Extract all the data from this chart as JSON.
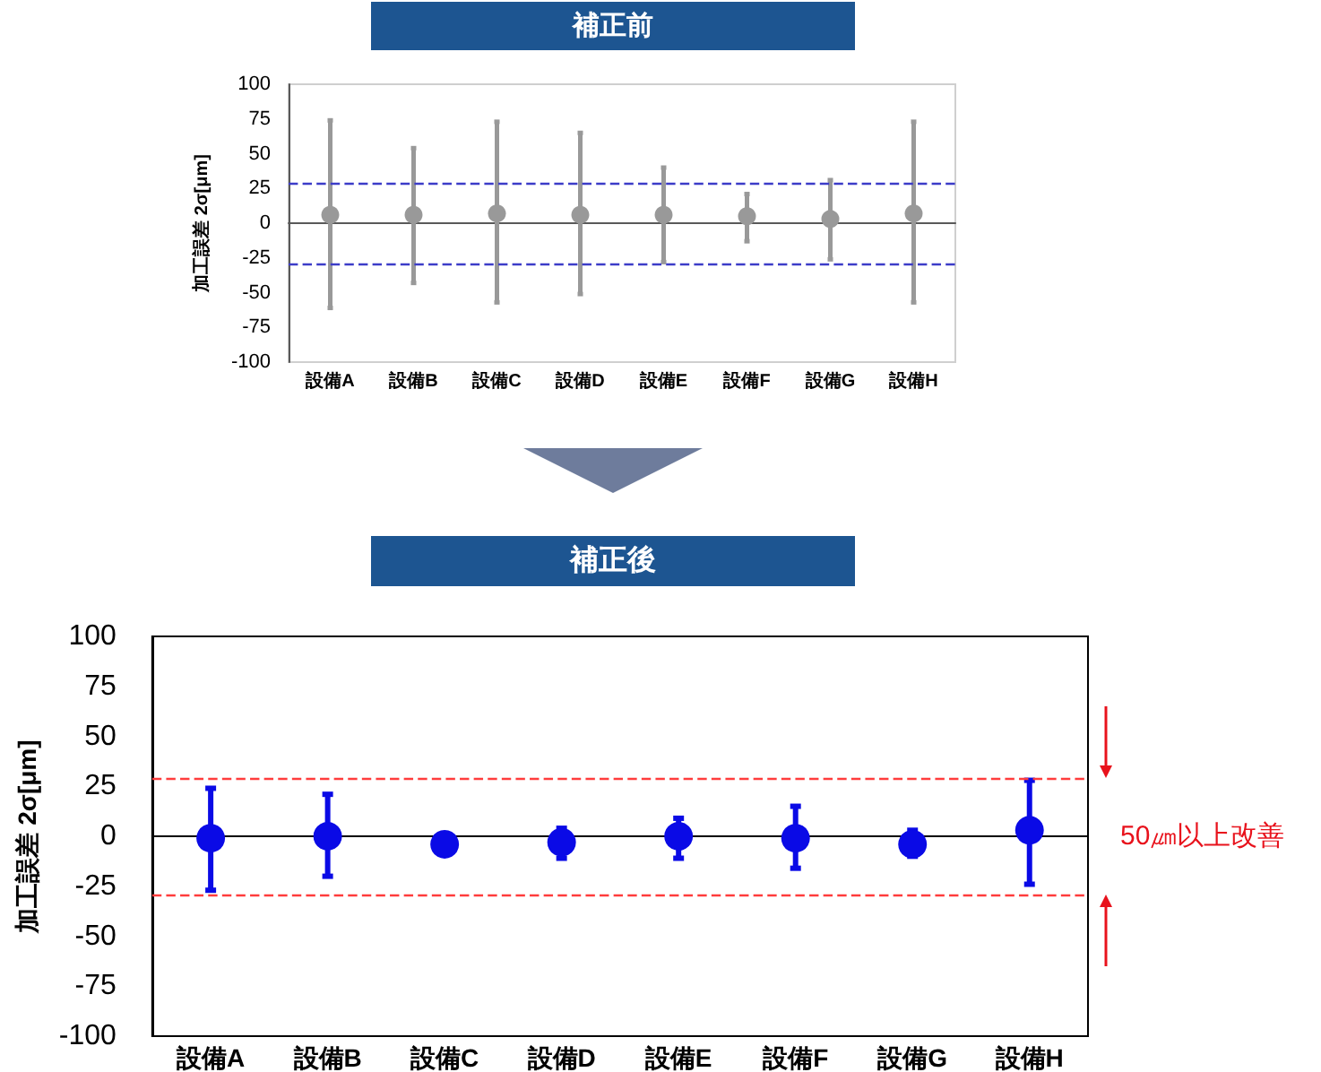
{
  "chart_data": [
    {
      "type": "scatter",
      "title": "補正前",
      "ylabel": "加工誤差 2σ[μm]",
      "categories": [
        "設備A",
        "設備B",
        "設備C",
        "設備D",
        "設備E",
        "設備F",
        "設備G",
        "設備H"
      ],
      "color": "#999999",
      "values": [
        6,
        6,
        7,
        6,
        6,
        5,
        3,
        7
      ],
      "errors": [
        [
          -61,
          74
        ],
        [
          -43,
          54
        ],
        [
          -57,
          73
        ],
        [
          -51,
          65
        ],
        [
          -28,
          40
        ],
        [
          -13,
          21
        ],
        [
          -26,
          31
        ],
        [
          -57,
          73
        ]
      ],
      "ylim": [
        -100,
        100
      ],
      "yticks": [
        -100,
        -75,
        -50,
        -25,
        0,
        25,
        50,
        75,
        100
      ],
      "ref_lines": [
        {
          "axis": "y",
          "value": 29,
          "color": "#3c3cc8",
          "line_style": "dashed"
        },
        {
          "axis": "y",
          "value": -29,
          "color": "#3c3cc8",
          "line_style": "dashed"
        }
      ],
      "marker": "circle"
    },
    {
      "type": "scatter",
      "title": "補正後",
      "ylabel": "加工誤差 2σ[μm]",
      "categories": [
        "設備A",
        "設備B",
        "設備C",
        "設備D",
        "設備E",
        "設備F",
        "設備G",
        "設備H"
      ],
      "color": "#0a0ae6",
      "values": [
        -1,
        0,
        -4,
        -3,
        0,
        -1,
        -4,
        3
      ],
      "errors": [
        [
          -27,
          24
        ],
        [
          -20,
          21
        ],
        null,
        [
          -11,
          4
        ],
        [
          -11,
          9
        ],
        [
          -16,
          15
        ],
        [
          -10,
          3
        ],
        [
          -24,
          28
        ]
      ],
      "ylim": [
        -100,
        100
      ],
      "yticks": [
        -100,
        -75,
        -50,
        -25,
        0,
        25,
        50,
        75,
        100
      ],
      "ref_lines": [
        {
          "axis": "y",
          "value": 29,
          "color": "#ff3c3c",
          "line_style": "dashed"
        },
        {
          "axis": "y",
          "value": -29,
          "color": "#ff3c3c",
          "line_style": "dashed"
        }
      ],
      "marker": "circle",
      "annotations": [
        "50㎛以上改善"
      ]
    }
  ]
}
